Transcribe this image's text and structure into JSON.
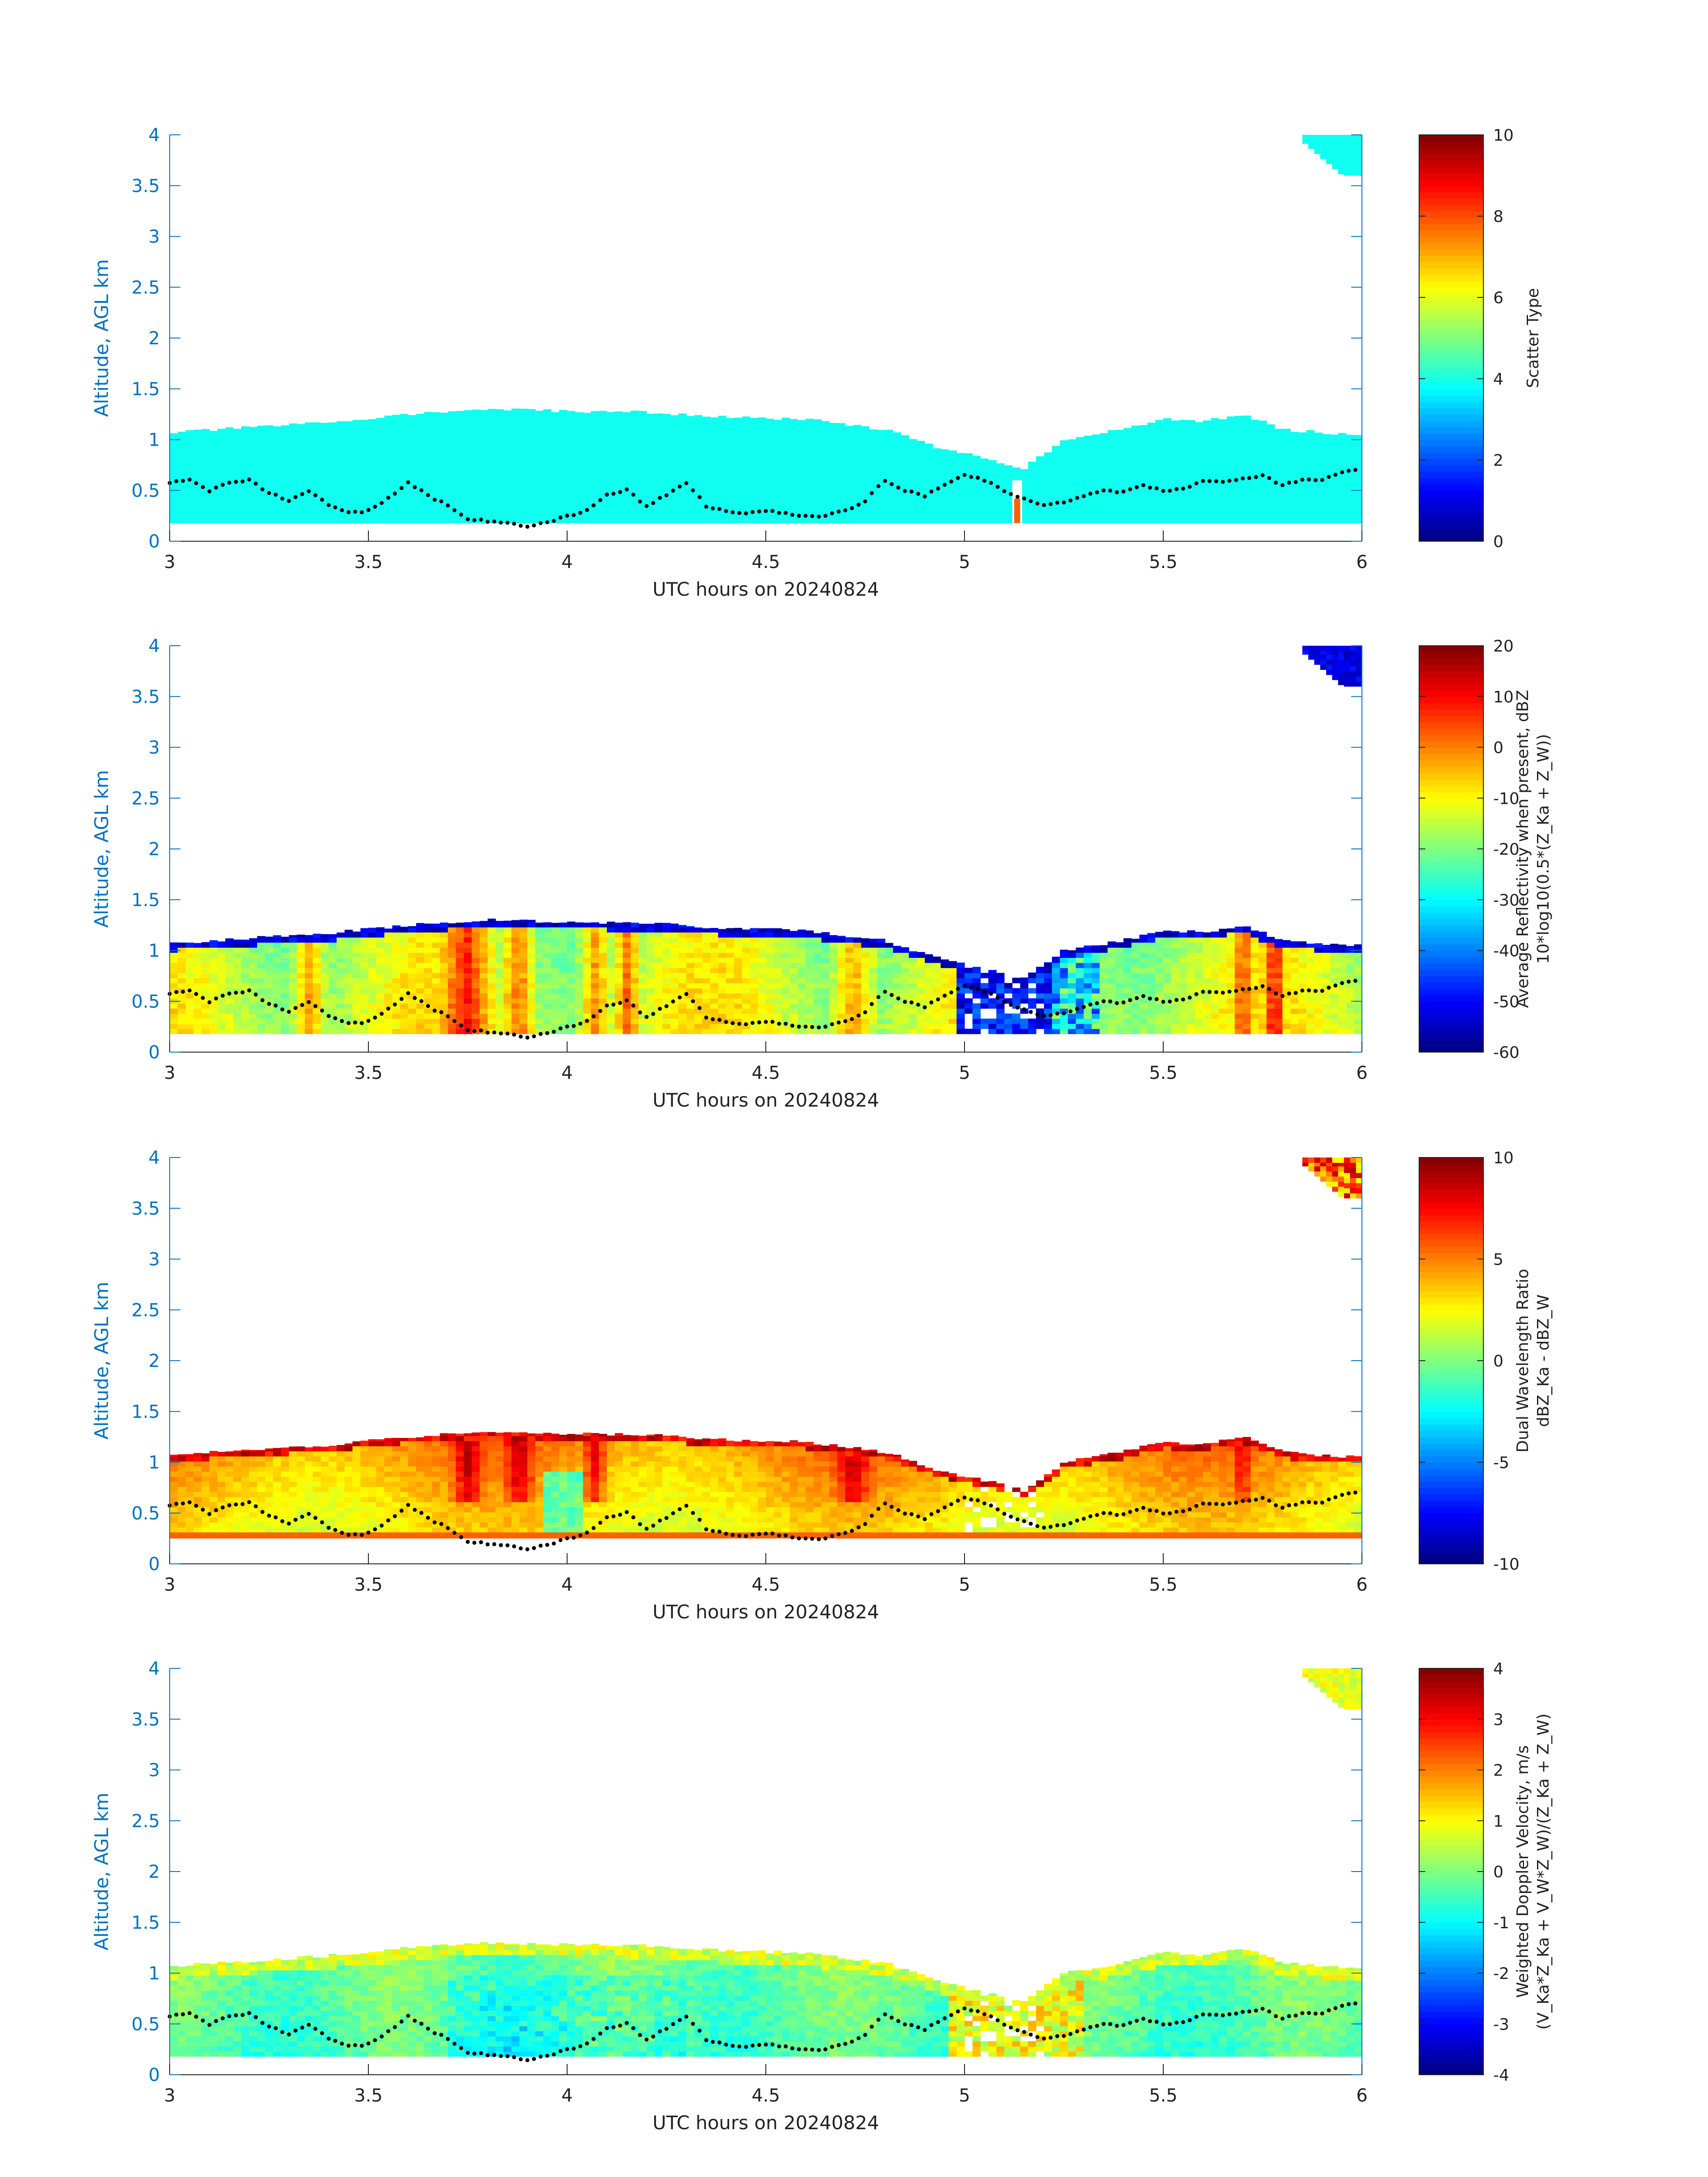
{
  "chart_data": [
    {
      "type": "heatmap",
      "xlabel": "UTC hours on 20240824",
      "ylabel": "Altitude, AGL km",
      "xlim": [
        3,
        6
      ],
      "ylim": [
        0,
        4
      ],
      "xticks": [
        "3",
        "3.5",
        "4",
        "4.5",
        "5",
        "5.5",
        "6"
      ],
      "yticks": [
        "0",
        "0.5",
        "1",
        "1.5",
        "2",
        "2.5",
        "3",
        "3.5",
        "4"
      ],
      "colorbar": {
        "label_lines": [
          "Scatter Type"
        ],
        "range": [
          0,
          10
        ],
        "ticks": [
          "0",
          "2",
          "4",
          "6",
          "8",
          "10"
        ]
      },
      "field": "scatter_type"
    },
    {
      "type": "heatmap",
      "xlabel": "UTC hours on 20240824",
      "ylabel": "Altitude, AGL km",
      "xlim": [
        3,
        6
      ],
      "ylim": [
        0,
        4
      ],
      "xticks": [
        "3",
        "3.5",
        "4",
        "4.5",
        "5",
        "5.5",
        "6"
      ],
      "yticks": [
        "0",
        "0.5",
        "1",
        "1.5",
        "2",
        "2.5",
        "3",
        "3.5",
        "4"
      ],
      "colorbar": {
        "label_lines": [
          "Average Reflectivity when present, dBZ",
          "10*log10(0.5*(Z_Ka + Z_W))"
        ],
        "range": [
          -60,
          20
        ],
        "ticks": [
          "-60",
          "-50",
          "-40",
          "-30",
          "-20",
          "-10",
          "0",
          "10",
          "20"
        ]
      },
      "field": "reflectivity"
    },
    {
      "type": "heatmap",
      "xlabel": "UTC hours on 20240824",
      "ylabel": "Altitude, AGL km",
      "xlim": [
        3,
        6
      ],
      "ylim": [
        0,
        4
      ],
      "xticks": [
        "3",
        "3.5",
        "4",
        "4.5",
        "5",
        "5.5",
        "6"
      ],
      "yticks": [
        "0",
        "0.5",
        "1",
        "1.5",
        "2",
        "2.5",
        "3",
        "3.5",
        "4"
      ],
      "colorbar": {
        "label_lines": [
          "Dual Wavelength Ratio",
          "dBZ_Ka - dBZ_W"
        ],
        "range": [
          -10,
          10
        ],
        "ticks": [
          "-10",
          "-5",
          "0",
          "5",
          "10"
        ]
      },
      "field": "dwr"
    },
    {
      "type": "heatmap",
      "xlabel": "UTC hours on 20240824",
      "ylabel": "Altitude, AGL km",
      "xlim": [
        3,
        6
      ],
      "ylim": [
        0,
        4
      ],
      "xticks": [
        "3",
        "3.5",
        "4",
        "4.5",
        "5",
        "5.5",
        "6"
      ],
      "yticks": [
        "0",
        "0.5",
        "1",
        "1.5",
        "2",
        "2.5",
        "3",
        "3.5",
        "4"
      ],
      "colorbar": {
        "label_lines": [
          "Weighted Doppler Velocity, m/s",
          "(V_Ka*Z_Ka + V_W*Z_W)/(Z_Ka + Z_W)"
        ],
        "range": [
          -4,
          4
        ],
        "ticks": [
          "-4",
          "-3",
          "-2",
          "-1",
          "0",
          "1",
          "2",
          "3",
          "4"
        ]
      },
      "field": "velocity"
    }
  ],
  "cloud": {
    "base_km": 0.18,
    "top_km": [
      [
        3.0,
        1.07
      ],
      [
        3.2,
        1.12
      ],
      [
        3.4,
        1.17
      ],
      [
        3.6,
        1.25
      ],
      [
        3.8,
        1.3
      ],
      [
        4.0,
        1.28
      ],
      [
        4.2,
        1.27
      ],
      [
        4.4,
        1.22
      ],
      [
        4.6,
        1.2
      ],
      [
        4.8,
        1.1
      ],
      [
        4.95,
        0.9
      ],
      [
        5.05,
        0.82
      ],
      [
        5.15,
        0.72
      ],
      [
        5.25,
        1.0
      ],
      [
        5.4,
        1.1
      ],
      [
        5.5,
        1.2
      ],
      [
        5.6,
        1.18
      ],
      [
        5.7,
        1.25
      ],
      [
        5.8,
        1.1
      ],
      [
        5.9,
        1.07
      ],
      [
        6.0,
        1.05
      ]
    ],
    "top_feature": {
      "x": [
        5.85,
        6.0
      ],
      "y_km": [
        3.6,
        4.0
      ]
    }
  },
  "cloud_base_dots": {
    "x": [
      3.0,
      3.05,
      3.1,
      3.15,
      3.2,
      3.25,
      3.3,
      3.35,
      3.4,
      3.45,
      3.5,
      3.55,
      3.6,
      3.65,
      3.7,
      3.75,
      3.8,
      3.85,
      3.9,
      3.95,
      4.0,
      4.05,
      4.1,
      4.15,
      4.2,
      4.25,
      4.3,
      4.35,
      4.4,
      4.45,
      4.5,
      4.55,
      4.6,
      4.65,
      4.7,
      4.75,
      4.8,
      4.85,
      4.9,
      4.95,
      5.0,
      5.05,
      5.1,
      5.15,
      5.2,
      5.25,
      5.3,
      5.35,
      5.4,
      5.45,
      5.5,
      5.55,
      5.6,
      5.65,
      5.7,
      5.75,
      5.8,
      5.85,
      5.9,
      5.95,
      6.0
    ],
    "y": [
      0.58,
      0.6,
      0.5,
      0.58,
      0.6,
      0.48,
      0.4,
      0.5,
      0.35,
      0.28,
      0.3,
      0.42,
      0.58,
      0.45,
      0.35,
      0.22,
      0.2,
      0.18,
      0.15,
      0.18,
      0.25,
      0.3,
      0.45,
      0.5,
      0.35,
      0.45,
      0.58,
      0.35,
      0.3,
      0.28,
      0.3,
      0.27,
      0.25,
      0.25,
      0.3,
      0.4,
      0.6,
      0.5,
      0.45,
      0.55,
      0.65,
      0.6,
      0.5,
      0.42,
      0.35,
      0.38,
      0.45,
      0.5,
      0.48,
      0.55,
      0.5,
      0.52,
      0.6,
      0.58,
      0.62,
      0.65,
      0.55,
      0.6,
      0.6,
      0.68,
      0.72
    ]
  }
}
